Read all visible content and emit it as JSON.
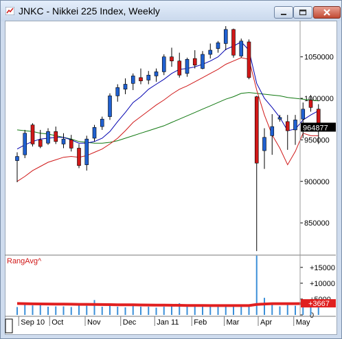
{
  "window": {
    "title": "JNKC - Nikkei 225 Index, Weekly",
    "buttons": [
      "minimize",
      "maximize",
      "close"
    ]
  },
  "chart_data": [
    {
      "type": "candlestick",
      "title": "JNKC - Nikkei 225 Index, Weekly",
      "yticks": [
        "1050000",
        "1000000",
        "950000",
        "900000",
        "850000"
      ],
      "ytick_values": [
        1050000,
        1000000,
        950000,
        900000,
        850000
      ],
      "ylim": [
        812000,
        1087000
      ],
      "last_value_label": "964877",
      "last_value": 964877,
      "up_color": "#2060d0",
      "down_color": "#d01818",
      "ohlc": [
        [
          925000,
          935000,
          899000,
          930000
        ],
        [
          932000,
          962000,
          928000,
          958000
        ],
        [
          968000,
          970000,
          942000,
          945000
        ],
        [
          950000,
          962000,
          940000,
          942000
        ],
        [
          946000,
          964000,
          944000,
          960000
        ],
        [
          960000,
          966000,
          945000,
          948000
        ],
        [
          945000,
          958000,
          940000,
          951000
        ],
        [
          950000,
          956000,
          936000,
          940000
        ],
        [
          940000,
          945000,
          916000,
          919000
        ],
        [
          920000,
          955000,
          913000,
          951000
        ],
        [
          952000,
          968000,
          948000,
          965000
        ],
        [
          966000,
          978000,
          962000,
          975000
        ],
        [
          978000,
          1006000,
          974000,
          1003000
        ],
        [
          1003000,
          1017000,
          996000,
          1013000
        ],
        [
          1011000,
          1024000,
          1005000,
          1017000
        ],
        [
          1018000,
          1030000,
          1010000,
          1027000
        ],
        [
          1025000,
          1036000,
          1017000,
          1021000
        ],
        [
          1022000,
          1033000,
          1017000,
          1028000
        ],
        [
          1027000,
          1036000,
          1020000,
          1032000
        ],
        [
          1032000,
          1053000,
          1028000,
          1050000
        ],
        [
          1050000,
          1061000,
          1038000,
          1045000
        ],
        [
          1045000,
          1055000,
          1025000,
          1028000
        ],
        [
          1030000,
          1049000,
          1026000,
          1047000
        ],
        [
          1048000,
          1058000,
          1036000,
          1040000
        ],
        [
          1036000,
          1057000,
          1035000,
          1053000
        ],
        [
          1053000,
          1066000,
          1048000,
          1058000
        ],
        [
          1060000,
          1069000,
          1055000,
          1067000
        ],
        [
          1066000,
          1087000,
          1058000,
          1083000
        ],
        [
          1083000,
          1084000,
          1049000,
          1052000
        ],
        [
          1051000,
          1072000,
          1049000,
          1069000
        ],
        [
          1068000,
          1071000,
          1023000,
          1025000
        ],
        [
          1002000,
          1003000,
          816000,
          922000
        ],
        [
          937000,
          964000,
          915000,
          953000
        ],
        [
          955000,
          981000,
          932000,
          966000
        ],
        [
          975000,
          980000,
          972000,
          977000
        ],
        [
          972000,
          980000,
          938000,
          961000
        ],
        [
          962000,
          980000,
          944000,
          974000
        ],
        [
          975000,
          995000,
          952000,
          987000
        ],
        [
          998000,
          1004000,
          984000,
          989000
        ],
        [
          987000,
          993000,
          945000,
          964877
        ]
      ],
      "ma_short": [
        939000,
        944000,
        948000,
        951000,
        952000,
        953000,
        953000,
        950000,
        946000,
        946000,
        948000,
        952000,
        960000,
        972000,
        983000,
        995000,
        1002000,
        1011000,
        1017000,
        1023000,
        1030000,
        1035000,
        1036000,
        1038000,
        1041000,
        1045000,
        1050000,
        1059000,
        1063000,
        1068000,
        1058000,
        1018000,
        1000000,
        989000,
        977000,
        961000,
        963000,
        974000,
        980000,
        985000
      ],
      "ma_mid": [
        900000,
        906000,
        913000,
        918000,
        923000,
        926000,
        929000,
        930000,
        929000,
        931000,
        935000,
        939000,
        945000,
        952000,
        961000,
        971000,
        978000,
        985000,
        992000,
        998000,
        1005000,
        1011000,
        1015000,
        1020000,
        1025000,
        1030000,
        1035000,
        1041000,
        1045000,
        1049000,
        1047000,
        1010000,
        980000,
        956000,
        940000,
        920000,
        936000,
        958000,
        955000,
        955000
      ],
      "ma_long": [
        962000,
        961000,
        960000,
        958000,
        957000,
        955000,
        953000,
        951000,
        948000,
        947000,
        946000,
        946000,
        947000,
        949000,
        952000,
        955000,
        958000,
        961000,
        964000,
        967000,
        971000,
        975000,
        979000,
        983000,
        987000,
        991000,
        995000,
        999000,
        1002000,
        1006000,
        1007000,
        1006000,
        1005000,
        1004000,
        1003000,
        1001000,
        1000000,
        999000,
        998000,
        997000
      ],
      "ma_colors": {
        "short": "#0000b0",
        "mid": "#d01818",
        "long": "#107810"
      }
    },
    {
      "type": "bar",
      "title": "RangAvg^",
      "yticks": [
        "+15000",
        "+10000",
        "+5000",
        "0"
      ],
      "ytick_values": [
        15000,
        10000,
        5000,
        0
      ],
      "ylim": [
        0,
        18000
      ],
      "last_value_label": "+3667",
      "last_value": 3667,
      "bar_color": "#3a8fd8",
      "avg_color": "#e02020",
      "values": [
        2500,
        3400,
        3000,
        3200,
        2600,
        2700,
        2700,
        2500,
        3500,
        2900,
        4700,
        2600,
        3500,
        2600,
        2400,
        2900,
        2600,
        2600,
        2300,
        2600,
        3400,
        3700,
        3000,
        2900,
        2700,
        2700,
        2600,
        3000,
        3100,
        3000,
        3000,
        18700,
        5400,
        3800,
        2700,
        3400,
        2900,
        3700,
        3900,
        3667
      ],
      "avg": [
        3600,
        3550,
        3500,
        3480,
        3450,
        3420,
        3400,
        3380,
        3350,
        3330,
        3300,
        3280,
        3250,
        3220,
        3200,
        3180,
        3150,
        3130,
        3100,
        3080,
        3050,
        3030,
        3000,
        2980,
        2970,
        2960,
        2950,
        2950,
        2940,
        2950,
        2960,
        3300,
        3450,
        3550,
        3550,
        3560,
        3560,
        3580,
        3620,
        3667
      ]
    }
  ],
  "x_axis": {
    "labels": [
      "Sep 10",
      "Oct",
      "Nov",
      "Dec",
      "Jan 11",
      "Feb",
      "Mar",
      "Apr",
      "May"
    ],
    "label_weeks": [
      0.2,
      4.2,
      8.8,
      13.4,
      17.8,
      22.6,
      26.8,
      31.2,
      35.8
    ]
  }
}
